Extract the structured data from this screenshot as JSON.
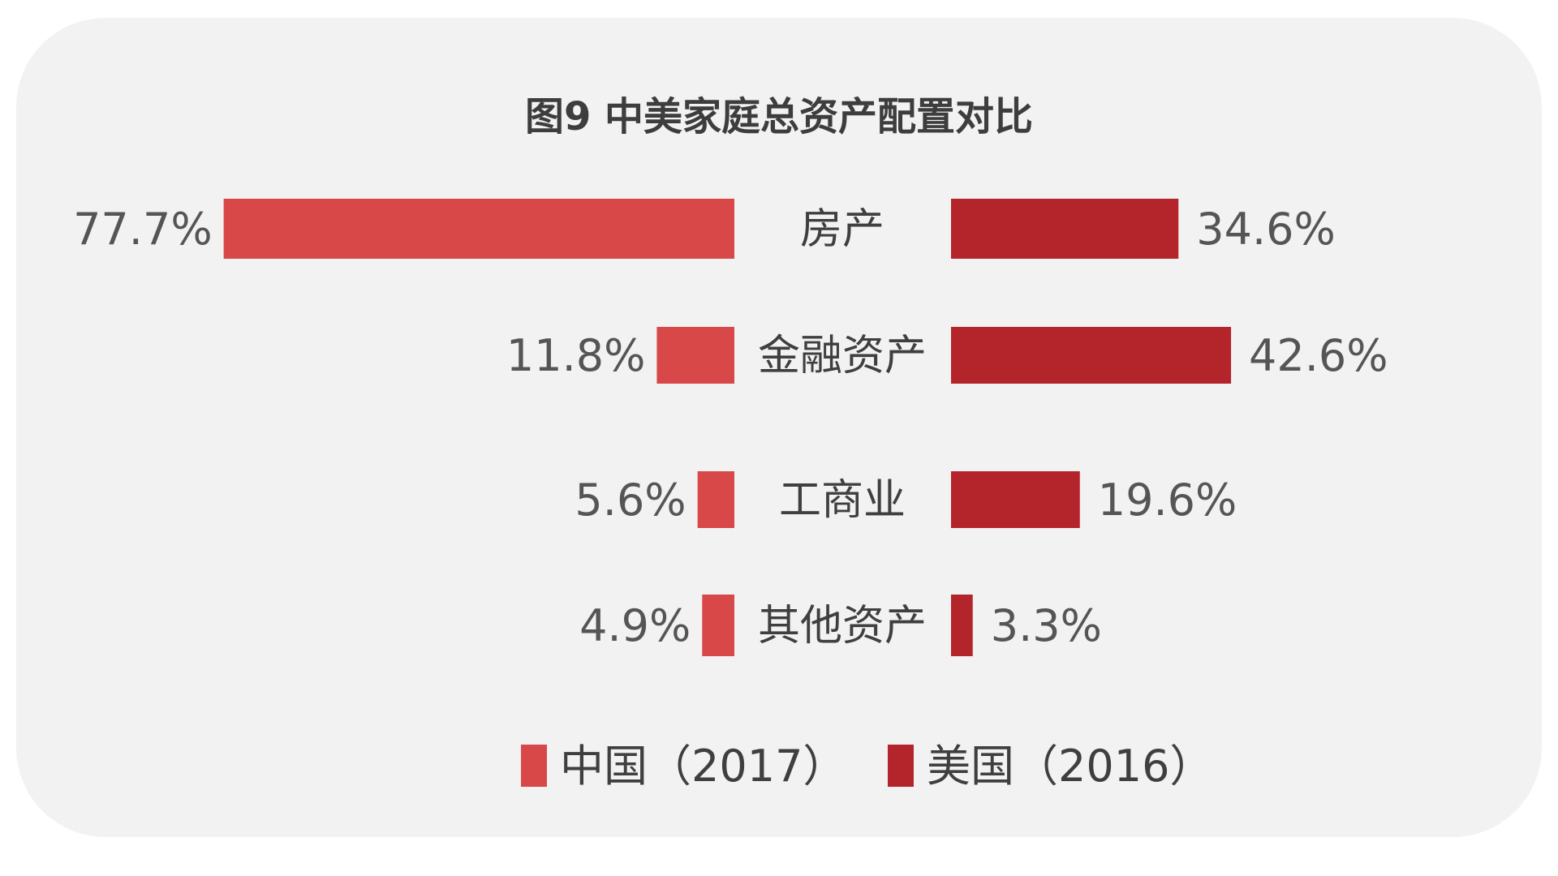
{
  "colors": {
    "china": "#d94848",
    "usa": "#b3252b",
    "background": "#f2f2f2",
    "text": "#3f3f3f"
  },
  "chart_data": {
    "type": "bar",
    "orientation": "horizontal-butterfly",
    "title": "图9 中美家庭总资产配置对比",
    "categories": [
      "房产",
      "金融资产",
      "工商业",
      "其他资产"
    ],
    "series": [
      {
        "name": "中国（2017）",
        "side": "left",
        "values": [
          77.7,
          11.8,
          5.6,
          4.9
        ],
        "labels": [
          "77.7%",
          "11.8%",
          "5.6%",
          "4.9%"
        ]
      },
      {
        "name": "美国（2016）",
        "side": "right",
        "values": [
          34.6,
          42.6,
          19.6,
          3.3
        ],
        "labels": [
          "34.6%",
          "42.6%",
          "19.6%",
          "3.3%"
        ]
      }
    ],
    "unit": "%",
    "legend_position": "bottom-center",
    "grid": false
  }
}
